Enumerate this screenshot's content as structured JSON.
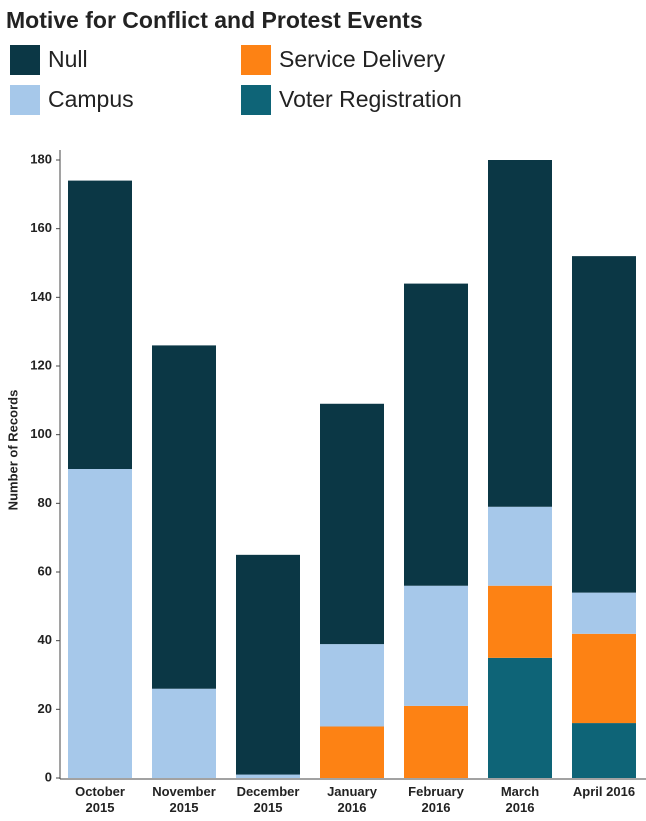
{
  "chart_data": {
    "type": "stacked_bar",
    "title": "Motive for Conflict and Protest Events",
    "y_label": "Number of Records",
    "categories": [
      [
        "October",
        "2015"
      ],
      [
        "November",
        "2015"
      ],
      [
        "December",
        "2015"
      ],
      [
        "January",
        "2016"
      ],
      [
        "February",
        "2016"
      ],
      [
        "March",
        "2016"
      ],
      [
        "April 2016"
      ]
    ],
    "series": [
      {
        "name": "Voter Registration",
        "color": "#0e6477",
        "values": [
          0,
          0,
          0,
          0,
          0,
          35,
          16
        ]
      },
      {
        "name": "Service Delivery",
        "color": "#fd8214",
        "values": [
          0,
          0,
          0,
          15,
          21,
          21,
          26
        ]
      },
      {
        "name": "Campus",
        "color": "#a6c8ea",
        "values": [
          90,
          26,
          1,
          24,
          35,
          23,
          12
        ]
      },
      {
        "name": "Null",
        "color": "#0b3745",
        "values": [
          84,
          100,
          64,
          70,
          88,
          101,
          98
        ]
      }
    ],
    "legend_order": [
      3,
      1,
      2,
      0
    ],
    "ylim": [
      0,
      180
    ],
    "yticks": [
      0,
      20,
      40,
      60,
      80,
      100,
      120,
      140,
      160,
      180
    ],
    "grid": false
  }
}
